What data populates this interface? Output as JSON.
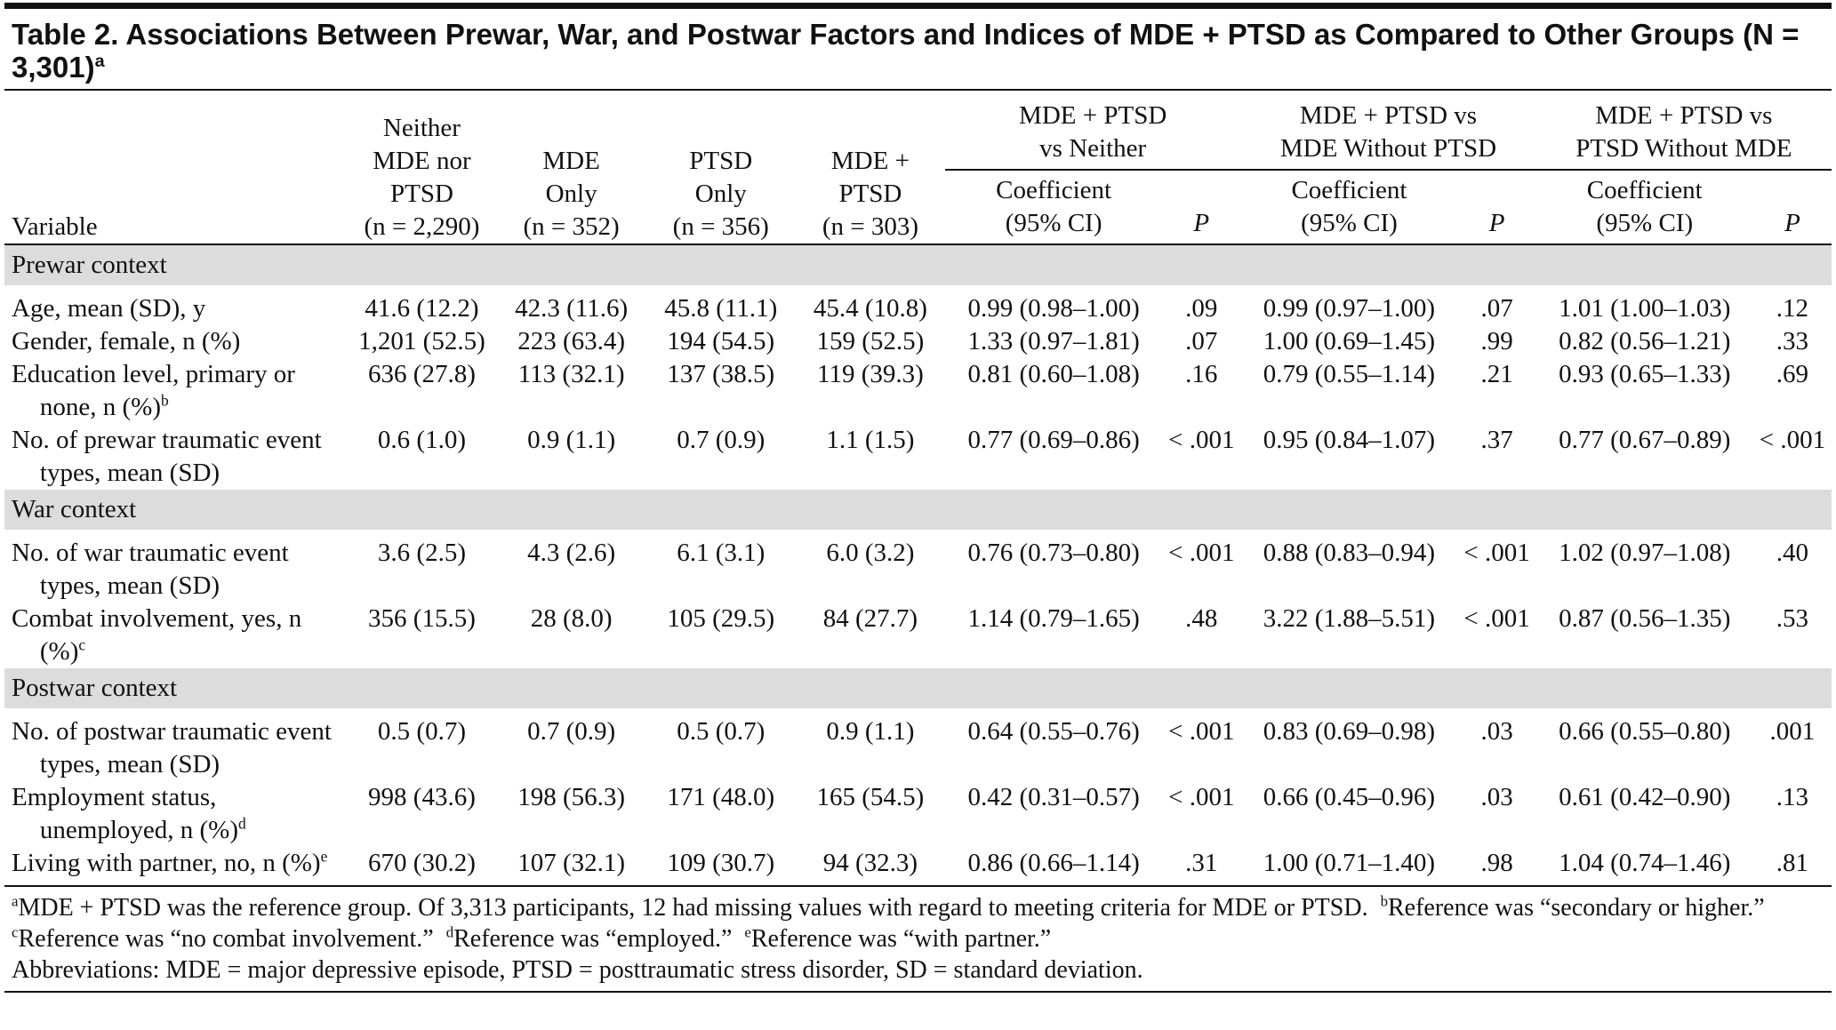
{
  "title": {
    "text": "Table 2. Associations Between Prewar, War, and Postwar Factors and Indices of MDE + PTSD as Compared to Other Groups (N = 3,301)",
    "sup": "a"
  },
  "header": {
    "variable": "Variable",
    "groups": [
      {
        "lines": [
          "Neither",
          "MDE nor",
          "PTSD",
          "(n = 2,290)"
        ]
      },
      {
        "lines": [
          "MDE",
          "Only",
          "(n = 352)"
        ]
      },
      {
        "lines": [
          "PTSD",
          "Only",
          "(n = 356)"
        ]
      },
      {
        "lines": [
          "MDE +",
          "PTSD",
          "(n = 303)"
        ]
      }
    ],
    "comparisons": [
      {
        "lines": [
          "MDE + PTSD",
          "vs Neither"
        ],
        "coef": [
          "Coefficient",
          "(95% CI)"
        ],
        "p": "P"
      },
      {
        "lines": [
          "MDE + PTSD vs",
          "MDE Without PTSD"
        ],
        "coef": [
          "Coefficient",
          "(95% CI)"
        ],
        "p": "P"
      },
      {
        "lines": [
          "MDE + PTSD vs",
          "PTSD Without MDE"
        ],
        "coef": [
          "Coefficient",
          "(95% CI)"
        ],
        "p": "P"
      }
    ]
  },
  "sections": [
    {
      "label": "Prewar context",
      "rows": [
        {
          "variable": "Age, mean (SD), y",
          "cells": [
            "41.6 (12.2)",
            "42.3 (11.6)",
            "45.8 (11.1)",
            "45.4 (10.8)",
            "0.99 (0.98–1.00)",
            ".09",
            "0.99 (0.97–1.00)",
            ".07",
            "1.01 (1.00–1.03)",
            ".12"
          ]
        },
        {
          "variable": "Gender, female, n (%)",
          "cells": [
            "1,201 (52.5)",
            "223 (63.4)",
            "194 (54.5)",
            "159 (52.5)",
            "1.33 (0.97–1.81)",
            ".07",
            "1.00 (0.69–1.45)",
            ".99",
            "0.82 (0.56–1.21)",
            ".33"
          ]
        },
        {
          "variable": "Education level, primary or none, n (%)",
          "sup": "b",
          "cells": [
            "636 (27.8)",
            "113 (32.1)",
            "137 (38.5)",
            "119 (39.3)",
            "0.81 (0.60–1.08)",
            ".16",
            "0.79 (0.55–1.14)",
            ".21",
            "0.93 (0.65–1.33)",
            ".69"
          ]
        },
        {
          "variable": "No. of prewar traumatic event types, mean (SD)",
          "cells": [
            "0.6 (1.0)",
            "0.9 (1.1)",
            "0.7 (0.9)",
            "1.1 (1.5)",
            "0.77 (0.69–0.86)",
            "< .001",
            "0.95 (0.84–1.07)",
            ".37",
            "0.77 (0.67–0.89)",
            "< .001"
          ]
        }
      ]
    },
    {
      "label": "War context",
      "rows": [
        {
          "variable": "No. of war traumatic event types, mean (SD)",
          "cells": [
            "3.6 (2.5)",
            "4.3 (2.6)",
            "6.1 (3.1)",
            "6.0 (3.2)",
            "0.76 (0.73–0.80)",
            "< .001",
            "0.88 (0.83–0.94)",
            "< .001",
            "1.02 (0.97–1.08)",
            ".40"
          ]
        },
        {
          "variable": "Combat involvement, yes, n (%)",
          "sup": "c",
          "cells": [
            "356 (15.5)",
            "28 (8.0)",
            "105 (29.5)",
            "84 (27.7)",
            "1.14 (0.79–1.65)",
            ".48",
            "3.22 (1.88–5.51)",
            "< .001",
            "0.87 (0.56–1.35)",
            ".53"
          ]
        }
      ]
    },
    {
      "label": "Postwar context",
      "rows": [
        {
          "variable": "No. of postwar traumatic event types, mean (SD)",
          "cells": [
            "0.5 (0.7)",
            "0.7 (0.9)",
            "0.5 (0.7)",
            "0.9 (1.1)",
            "0.64 (0.55–0.76)",
            "< .001",
            "0.83 (0.69–0.98)",
            ".03",
            "0.66 (0.55–0.80)",
            ".001"
          ]
        },
        {
          "variable": "Employment status, unemployed, n (%)",
          "sup": "d",
          "cells": [
            "998 (43.6)",
            "198 (56.3)",
            "171 (48.0)",
            "165 (54.5)",
            "0.42 (0.31–0.57)",
            "< .001",
            "0.66 (0.45–0.96)",
            ".03",
            "0.61 (0.42–0.90)",
            ".13"
          ]
        },
        {
          "variable": "Living with partner, no, n (%)",
          "sup": "e",
          "cells": [
            "670 (30.2)",
            "107 (32.1)",
            "109 (30.7)",
            "94 (32.3)",
            "0.86 (0.66–1.14)",
            ".31",
            "1.00 (0.71–1.40)",
            ".98",
            "1.04 (0.74–1.46)",
            ".81"
          ]
        }
      ]
    }
  ],
  "footnotes": [
    {
      "mark": "a",
      "text": "MDE + PTSD was the reference group. Of 3,313 participants, 12 had missing values with regard to meeting criteria for MDE or PTSD."
    },
    {
      "mark": "b",
      "text": "Reference was “secondary or higher.”"
    },
    {
      "mark": "c",
      "text": "Reference was “no combat involvement.”"
    },
    {
      "mark": "d",
      "text": "Reference was “employed.”"
    },
    {
      "mark": "e",
      "text": "Reference was “with partner.”"
    }
  ],
  "abbreviations": "Abbreviations: MDE = major depressive episode, PTSD = posttraumatic stress disorder, SD = standard deviation."
}
